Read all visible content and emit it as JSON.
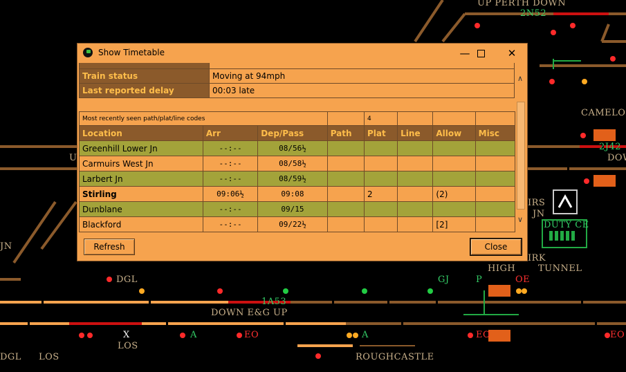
{
  "background": {
    "labels": {
      "up_perth_down": "UP PERTH DOWN",
      "head_2n52": "2N52",
      "camelon": "CAMELON",
      "head_2j42": "2J42",
      "down_right": "DOW",
      "up_left": "U",
      "irs_jn_1": "IRS",
      "irs_jn_2": "JN",
      "duty_ce": "DUTY CE",
      "irk": "IRK",
      "high": "HIGH",
      "tunnel": "TUNNEL",
      "jn_left": "JN",
      "dgl": "DGL",
      "gj": "GJ",
      "p": "P",
      "oe": "OE",
      "head_1a53": "1A53",
      "down_eg_up": "DOWN E&G UP",
      "los": "LOS",
      "x_marker": "X",
      "eo_1": "EO",
      "eo_2": "EO",
      "eo_3": "EO",
      "a_1": "A",
      "a_2": "A",
      "dgl_bottom": "DGL",
      "los_bottom": "LOS",
      "roughcastle": "ROUGHCASTLE"
    }
  },
  "dialog": {
    "title": "Show Timetable",
    "minimize_icon": "minimize-icon",
    "maximize_icon": "maximize-icon",
    "close_icon": "close-icon",
    "status": [
      {
        "key": "Train status",
        "value": "Moving at 94mph"
      },
      {
        "key": "Last reported delay",
        "value": "00:03 late"
      }
    ],
    "caption": {
      "text": "Most recently seen path/plat/line codes",
      "plat": "4"
    },
    "columns": [
      "Location",
      "Arr",
      "Dep/Pass",
      "Path",
      "Plat",
      "Line",
      "Allow",
      "Misc"
    ],
    "rows": [
      {
        "location": "Greenhill Lower Jn",
        "arr": "--:--",
        "dep": "08/56½",
        "path": "",
        "plat": "",
        "line": "",
        "allow": "",
        "misc": "",
        "bold": false
      },
      {
        "location": "Carmuirs West Jn",
        "arr": "--:--",
        "dep": "08/58½",
        "path": "",
        "plat": "",
        "line": "",
        "allow": "",
        "misc": "",
        "bold": false
      },
      {
        "location": "Larbert Jn",
        "arr": "--:--",
        "dep": "08/59½",
        "path": "",
        "plat": "",
        "line": "",
        "allow": "",
        "misc": "",
        "bold": false
      },
      {
        "location": "Stirling",
        "arr": "09:06½",
        "dep": "09:08",
        "path": "",
        "plat": "2",
        "line": "",
        "allow": "(2)",
        "misc": "",
        "bold": true
      },
      {
        "location": "Dunblane",
        "arr": "--:--",
        "dep": "09/15",
        "path": "",
        "plat": "",
        "line": "",
        "allow": "",
        "misc": "",
        "bold": false
      },
      {
        "location": "Blackford",
        "arr": "--:--",
        "dep": "09/22½",
        "path": "",
        "plat": "",
        "line": "",
        "allow": "[2]",
        "misc": "",
        "bold": false
      }
    ],
    "buttons": {
      "refresh": "Refresh",
      "close": "Close"
    },
    "colors": {
      "dialog_bg": "#f6a34e",
      "header_bg": "#8b5a2b",
      "header_text": "#ffbd4a",
      "row_green": "#a3a33a"
    }
  }
}
